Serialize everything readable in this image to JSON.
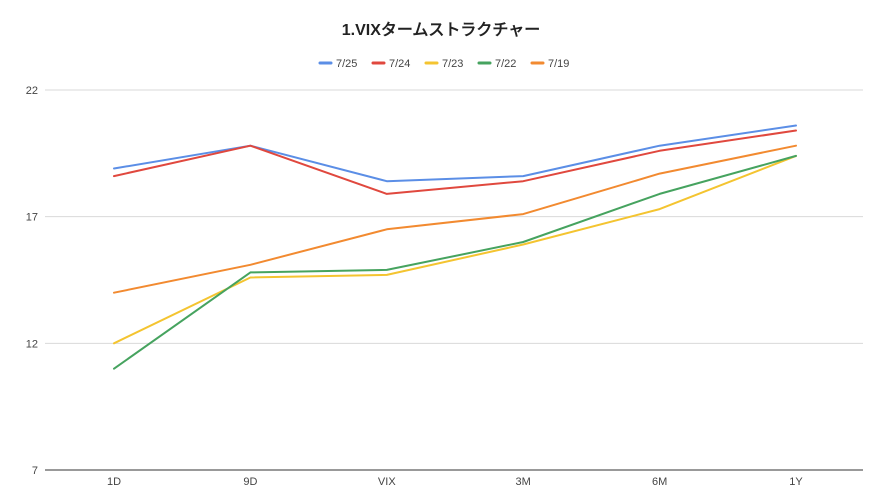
{
  "chart_data": {
    "type": "line",
    "title": "1.VIXタームストラクチャー",
    "xlabel": "",
    "ylabel": "",
    "categories": [
      "1D",
      "9D",
      "VIX",
      "3M",
      "6M",
      "1Y"
    ],
    "ylim": [
      7,
      22
    ],
    "yticks": [
      7,
      12,
      17,
      22
    ],
    "grid": true,
    "legend_position": "top",
    "series": [
      {
        "name": "7/25",
        "color": "#5b8ee6",
        "values": [
          18.9,
          19.8,
          18.4,
          18.6,
          19.8,
          20.6
        ]
      },
      {
        "name": "7/24",
        "color": "#e0483e",
        "values": [
          18.6,
          19.8,
          17.9,
          18.4,
          19.6,
          20.4
        ]
      },
      {
        "name": "7/23",
        "color": "#f4c430",
        "values": [
          12.0,
          14.6,
          14.7,
          15.9,
          17.3,
          19.4
        ]
      },
      {
        "name": "7/22",
        "color": "#46a35f",
        "values": [
          11.0,
          14.8,
          14.9,
          16.0,
          17.9,
          19.4
        ]
      },
      {
        "name": "7/19",
        "color": "#f28a30",
        "values": [
          14.0,
          15.1,
          16.5,
          17.1,
          18.7,
          19.8
        ]
      }
    ]
  }
}
